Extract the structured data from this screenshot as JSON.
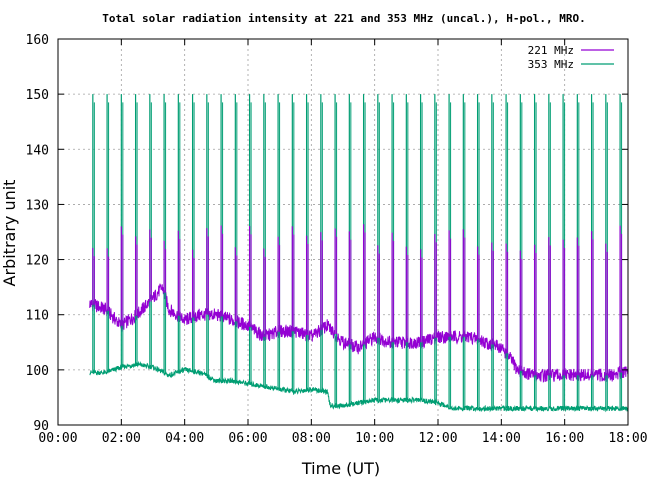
{
  "chart_data": {
    "type": "line",
    "title": "Total solar radiation intensity at 221 and 353 MHz (uncal.), H-pol., MRO.",
    "xlabel": "Time (UT)",
    "ylabel": "Arbitrary unit",
    "xlim": [
      0,
      18
    ],
    "ylim": [
      90,
      160
    ],
    "x_ticks": [
      "00:00",
      "02:00",
      "04:00",
      "06:00",
      "08:00",
      "10:00",
      "12:00",
      "14:00",
      "16:00",
      "18:00"
    ],
    "y_ticks": [
      "90",
      "100",
      "110",
      "120",
      "130",
      "140",
      "150",
      "160"
    ],
    "grid": true,
    "legend_position": "top-right",
    "spike_times": [
      1.1,
      1.55,
      2.0,
      2.45,
      2.9,
      3.35,
      3.8,
      4.25,
      4.7,
      5.15,
      5.6,
      6.05,
      6.5,
      6.95,
      7.4,
      7.85,
      8.3,
      8.75,
      9.2,
      9.65,
      10.1,
      10.55,
      11.0,
      11.45,
      11.9,
      12.35,
      12.8,
      13.25,
      13.7,
      14.15,
      14.6,
      15.05,
      15.5,
      15.95,
      16.4,
      16.85,
      17.3,
      17.75
    ],
    "series": [
      {
        "name": "221 MHz",
        "color": "#9400d3",
        "spike_top": 124,
        "x": [
          1.0,
          1.5,
          2.0,
          2.5,
          3.0,
          3.3,
          3.5,
          4.0,
          4.5,
          5.0,
          5.5,
          6.0,
          6.5,
          7.0,
          7.5,
          8.0,
          8.5,
          9.0,
          9.5,
          10.0,
          10.5,
          11.0,
          11.5,
          12.0,
          12.5,
          13.0,
          13.5,
          14.0,
          14.3,
          14.5,
          15.0,
          15.5,
          16.0,
          16.5,
          17.0,
          17.5,
          18.0
        ],
        "y": [
          112,
          111,
          108,
          110,
          113,
          115,
          111,
          109,
          110,
          110,
          109,
          108,
          106,
          107,
          107,
          106,
          108,
          105,
          104,
          106,
          105,
          105,
          105,
          106,
          106,
          106,
          105,
          104,
          102,
          100,
          99,
          99,
          99,
          99,
          99,
          99,
          100
        ]
      },
      {
        "name": "353 MHz",
        "color": "#009e73",
        "spike_top": 150,
        "x": [
          1.0,
          1.5,
          2.0,
          2.5,
          3.0,
          3.5,
          4.0,
          4.5,
          5.0,
          5.5,
          6.0,
          6.5,
          7.0,
          7.5,
          8.0,
          8.5,
          8.6,
          9.0,
          9.5,
          10.0,
          10.5,
          11.0,
          11.5,
          12.0,
          12.5,
          13.0,
          13.5,
          14.0,
          14.5,
          15.0,
          15.5,
          16.0,
          16.5,
          17.0,
          17.5,
          18.0
        ],
        "y": [
          99.5,
          99.5,
          100.5,
          101,
          100.5,
          99,
          100,
          99.5,
          98,
          98,
          97.5,
          97,
          96.5,
          96,
          96.5,
          96,
          93.5,
          93.5,
          94,
          94.5,
          94.5,
          94.5,
          94.5,
          94,
          93,
          93,
          93,
          93,
          93,
          93,
          93,
          93,
          93,
          93,
          93,
          93
        ]
      }
    ]
  }
}
